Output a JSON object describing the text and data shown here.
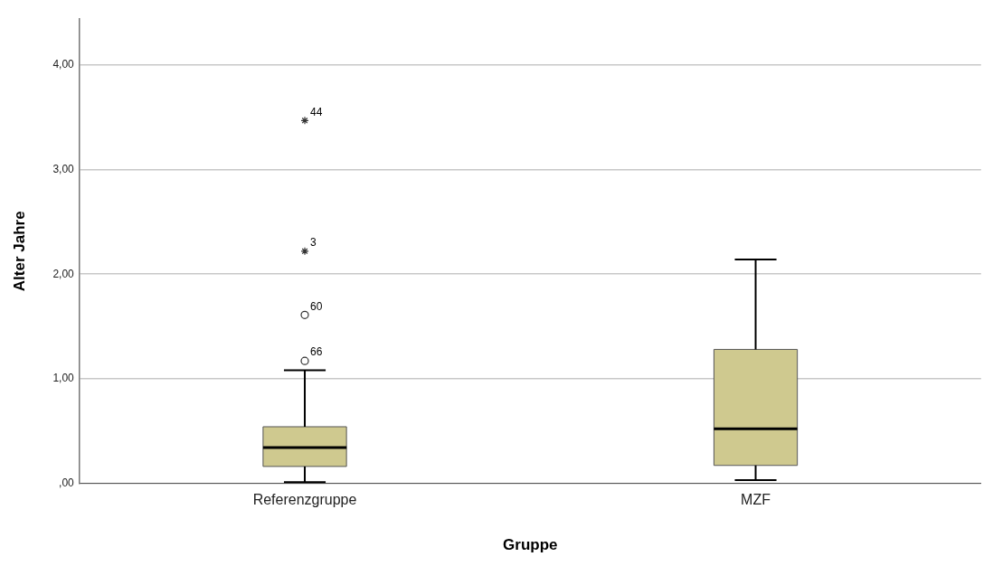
{
  "chart_data": {
    "type": "box",
    "xlabel": "Gruppe",
    "ylabel": "Alter Jahre",
    "categories": [
      "Referenzgruppe",
      "MZF"
    ],
    "color": "#cfc98f",
    "boxes": [
      {
        "low": 0.01,
        "q1": 0.16,
        "median": 0.34,
        "q3": 0.54,
        "high": 1.08,
        "outliers": [
          1.17,
          1.61,
          2.22,
          3.47
        ]
      },
      {
        "low": 0.03,
        "q1": 0.17,
        "median": 0.52,
        "q3": 1.28,
        "high": 2.14
      }
    ],
    "ylim": [
      0,
      4.44
    ],
    "yticks": [
      {
        "value": 0,
        "label": ",00"
      },
      {
        "value": 1,
        "label": "1,00"
      },
      {
        "value": 2,
        "label": "2,00"
      },
      {
        "value": 3,
        "label": "3,00"
      },
      {
        "value": 4,
        "label": "4,00"
      }
    ],
    "grid": "y",
    "legend": false,
    "annotations": [
      "66",
      "60",
      "3",
      "44"
    ]
  }
}
